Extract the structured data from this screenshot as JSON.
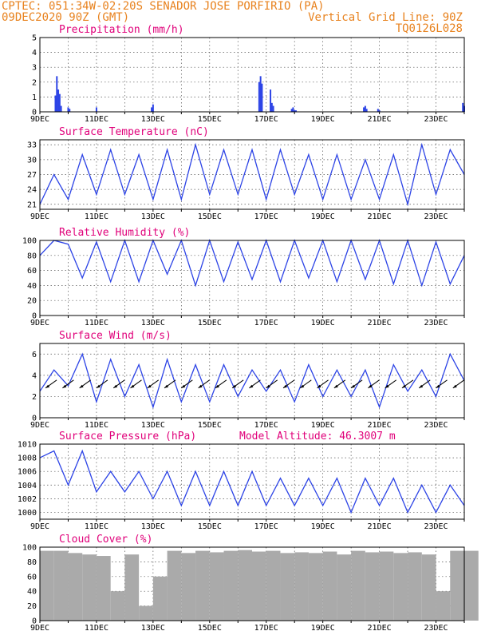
{
  "header": {
    "line1_left": "CPTEC:  051:34W-02:20S  SENADOR JOSE PORFIRIO (PA)",
    "line2_left": "09DEC2020 90Z (GMT)",
    "line2_right": "Vertical Grid Line: 90Z",
    "line3_right": "TQ0126L028"
  },
  "colors": {
    "header": "#e8821e",
    "title": "#e0007a",
    "series": "#2d44e6",
    "cloud": "#aaaaaa",
    "arrow": "#000000"
  },
  "x_labels": [
    "9DEC",
    "11DEC",
    "13DEC",
    "15DEC",
    "17DEC",
    "19DEC",
    "21DEC",
    "23DEC"
  ],
  "chart_data": [
    {
      "id": "precip",
      "type": "bar",
      "title": "Precipitation (mm/h)",
      "ylim": [
        0,
        5
      ],
      "yticks": [
        "0",
        "1",
        "2",
        "3",
        "4",
        "5"
      ],
      "x_days": [
        0.55,
        0.6,
        0.65,
        0.7,
        0.75,
        1.0,
        1.05,
        2.0,
        3.95,
        4.0,
        7.75,
        7.8,
        7.85,
        8.15,
        8.2,
        8.25,
        8.9,
        8.95,
        9.0,
        9.05,
        11.45,
        11.5,
        11.55,
        11.95,
        12.0,
        14.95,
        15.0
      ],
      "values": [
        1.1,
        2.4,
        1.5,
        1.2,
        0.4,
        0.3,
        0.2,
        0.3,
        0.3,
        0.5,
        2.0,
        2.4,
        1.9,
        1.5,
        0.6,
        0.4,
        0.2,
        0.3,
        0.1,
        0.1,
        0.3,
        0.4,
        0.2,
        0.2,
        0.1,
        0.6,
        0.4
      ]
    },
    {
      "id": "temp",
      "type": "line",
      "title": "Surface Temperature (nC)",
      "ylim": [
        20,
        34
      ],
      "ytick_values": [
        21,
        24,
        27,
        30,
        33
      ],
      "yticks": [
        "21",
        "24",
        "27",
        "30",
        "33"
      ],
      "x_days": [
        0,
        0.5,
        1,
        1.5,
        2,
        2.5,
        3,
        3.5,
        4,
        4.5,
        5,
        5.5,
        6,
        6.5,
        7,
        7.5,
        8,
        8.5,
        9,
        9.5,
        10,
        10.5,
        11,
        11.5,
        12,
        12.5,
        13,
        13.5,
        14,
        14.5,
        15
      ],
      "values": [
        21,
        27,
        22,
        31,
        23,
        32,
        23,
        31,
        22,
        32,
        22,
        33,
        23,
        32,
        23,
        32,
        22,
        32,
        23,
        31,
        22,
        31,
        22,
        30,
        22,
        31,
        21,
        33,
        23,
        32,
        27
      ]
    },
    {
      "id": "rh",
      "type": "line",
      "title": "Relative Humidity (%)",
      "ylim": [
        0,
        100
      ],
      "ytick_values": [
        0,
        20,
        40,
        60,
        80,
        100
      ],
      "yticks": [
        "0",
        "20",
        "40",
        "60",
        "80",
        "100"
      ],
      "x_days": [
        0,
        0.5,
        1,
        1.5,
        2,
        2.5,
        3,
        3.5,
        4,
        4.5,
        5,
        5.5,
        6,
        6.5,
        7,
        7.5,
        8,
        8.5,
        9,
        9.5,
        10,
        10.5,
        11,
        11.5,
        12,
        12.5,
        13,
        13.5,
        14,
        14.5,
        15
      ],
      "values": [
        80,
        100,
        95,
        50,
        98,
        45,
        100,
        45,
        100,
        55,
        100,
        40,
        100,
        45,
        98,
        48,
        100,
        45,
        100,
        50,
        100,
        45,
        100,
        48,
        100,
        42,
        100,
        40,
        98,
        42,
        80
      ]
    },
    {
      "id": "wind",
      "type": "line",
      "title": "Surface Wind (m/s)",
      "ylim": [
        0,
        7
      ],
      "ytick_values": [
        0,
        2,
        4,
        6
      ],
      "yticks": [
        "0",
        "2",
        "4",
        "6"
      ],
      "x_days": [
        0,
        0.5,
        1,
        1.5,
        2,
        2.5,
        3,
        3.5,
        4,
        4.5,
        5,
        5.5,
        6,
        6.5,
        7,
        7.5,
        8,
        8.5,
        9,
        9.5,
        10,
        10.5,
        11,
        11.5,
        12,
        12.5,
        13,
        13.5,
        14,
        14.5,
        15
      ],
      "values": [
        2.5,
        4.5,
        3.0,
        6.0,
        1.5,
        5.5,
        2.0,
        5.0,
        1.0,
        5.5,
        1.5,
        5.0,
        1.5,
        5.0,
        2.0,
        4.5,
        2.5,
        4.5,
        1.5,
        5.0,
        2.0,
        4.5,
        2.0,
        4.5,
        1.0,
        5.0,
        2.5,
        4.5,
        2.0,
        6.0,
        3.5
      ]
    },
    {
      "id": "pressure",
      "type": "line",
      "title": "Surface Pressure (hPa)",
      "extra_label": "Model Altitude: 46.3007 m",
      "ylim": [
        999,
        1010
      ],
      "ytick_values": [
        1000,
        1002,
        1004,
        1006,
        1008,
        1010
      ],
      "yticks": [
        "1000",
        "1002",
        "1004",
        "1006",
        "1008",
        "1010"
      ],
      "x_days": [
        0,
        0.5,
        1,
        1.5,
        2,
        2.5,
        3,
        3.5,
        4,
        4.5,
        5,
        5.5,
        6,
        6.5,
        7,
        7.5,
        8,
        8.5,
        9,
        9.5,
        10,
        10.5,
        11,
        11.5,
        12,
        12.5,
        13,
        13.5,
        14,
        14.5,
        15
      ],
      "values": [
        1008,
        1009,
        1004,
        1009,
        1003,
        1006,
        1003,
        1006,
        1002,
        1006,
        1001,
        1006,
        1001,
        1006,
        1001,
        1006,
        1001,
        1005,
        1001,
        1005,
        1001,
        1005,
        1000,
        1005,
        1001,
        1005,
        1000,
        1004,
        1000,
        1004,
        1001
      ]
    },
    {
      "id": "cloud",
      "type": "area",
      "title": "Cloud Cover (%)",
      "ylim": [
        0,
        100
      ],
      "ytick_values": [
        0,
        20,
        40,
        60,
        80,
        100
      ],
      "yticks": [
        "0",
        "20",
        "40",
        "60",
        "80",
        "100"
      ],
      "x_days": [
        0,
        0.5,
        1,
        1.5,
        2,
        2.5,
        3,
        3.5,
        4,
        4.5,
        5,
        5.5,
        6,
        6.5,
        7,
        7.5,
        8,
        8.5,
        9,
        9.5,
        10,
        10.5,
        11,
        11.5,
        12,
        12.5,
        13,
        13.5,
        14,
        14.5,
        15
      ],
      "values": [
        95,
        95,
        92,
        90,
        88,
        40,
        90,
        20,
        60,
        95,
        92,
        95,
        93,
        95,
        96,
        94,
        95,
        92,
        93,
        92,
        94,
        90,
        95,
        93,
        94,
        92,
        93,
        90,
        40,
        95,
        95
      ]
    }
  ]
}
